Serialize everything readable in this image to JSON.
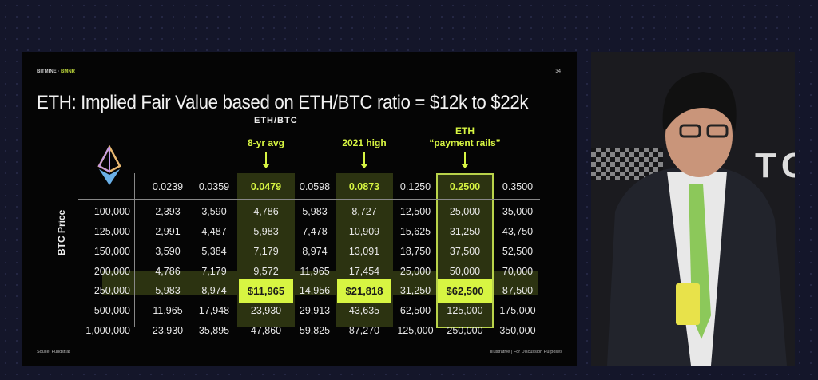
{
  "slide": {
    "brand": "BITMINE",
    "brand_ticker": "BMNR",
    "page_number": "34",
    "title": "ETH: Implied Fair Value based on ETH/BTC ratio = $12k to $22k",
    "column_axis_label": "ETH/BTC",
    "row_axis_label": "BTC Price",
    "annotations": [
      {
        "label": "8-yr avg"
      },
      {
        "label": "2021 high"
      },
      {
        "label": "ETH",
        "label2": "“payment rails”"
      }
    ],
    "ratios": [
      "0.0239",
      "0.0359",
      "0.0479",
      "0.0598",
      "0.0873",
      "0.1250",
      "0.2500",
      "0.3500"
    ],
    "rows": [
      {
        "btc": "100,000",
        "values": [
          "2,393",
          "3,590",
          "4,786",
          "5,983",
          "8,727",
          "12,500",
          "25,000",
          "35,000"
        ]
      },
      {
        "btc": "125,000",
        "values": [
          "2,991",
          "4,487",
          "5,983",
          "7,478",
          "10,909",
          "15,625",
          "31,250",
          "43,750"
        ]
      },
      {
        "btc": "150,000",
        "values": [
          "3,590",
          "5,384",
          "7,179",
          "8,974",
          "13,091",
          "18,750",
          "37,500",
          "52,500"
        ]
      },
      {
        "btc": "200,000",
        "values": [
          "4,786",
          "7,179",
          "9,572",
          "11,965",
          "17,454",
          "25,000",
          "50,000",
          "70,000"
        ]
      },
      {
        "btc": "250,000",
        "values": [
          "5,983",
          "8,974",
          "$11,965",
          "14,956",
          "$21,818",
          "31,250",
          "$62,500",
          "87,500"
        ]
      },
      {
        "btc": "500,000",
        "values": [
          "11,965",
          "17,948",
          "23,930",
          "29,913",
          "43,635",
          "62,500",
          "125,000",
          "175,000"
        ]
      },
      {
        "btc": "1,000,000",
        "values": [
          "23,930",
          "35,895",
          "47,860",
          "59,825",
          "87,270",
          "125,000",
          "250,000",
          "350,000"
        ]
      }
    ],
    "source": "Souce: Fundstrat",
    "footer": "Illustrative  |  For Discussion Purposes",
    "accent_color": "#d7f542"
  },
  "video": {
    "backdrop_text": "TC"
  }
}
